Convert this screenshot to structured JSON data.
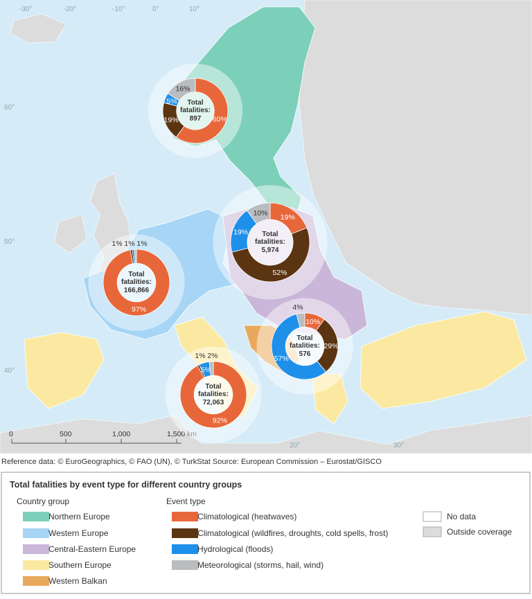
{
  "map": {
    "graticule_lon": [
      "-30°",
      "-20°",
      "-10°",
      "0°",
      "10°",
      "20°",
      "30°"
    ],
    "graticule_lat": [
      "60°",
      "50°",
      "40°"
    ],
    "scale_bar": [
      "0",
      "500",
      "1,000",
      "1,500",
      "km"
    ]
  },
  "reference": "Reference data: © EuroGeographics, © FAO (UN), © TurkStat Source: European Commission – Eurostat/GISCO",
  "donut_caption": "Total fatalities:",
  "donuts": [
    {
      "total": 897,
      "values": [
        60,
        19,
        5,
        16
      ],
      "value_labels": [
        "60%",
        "19%",
        "5%",
        "16%"
      ]
    },
    {
      "total": 166866,
      "total_label": "166,866",
      "values": [
        97,
        1,
        1,
        1
      ],
      "value_labels": [
        "97%",
        "1%",
        "1%",
        "1%"
      ]
    },
    {
      "total": 5974,
      "total_label": "5,974",
      "values": [
        19,
        52,
        19,
        10
      ],
      "value_labels": [
        "19%",
        "52%",
        "19%",
        "10%"
      ]
    },
    {
      "total": 576,
      "values": [
        10,
        29,
        57,
        4
      ],
      "value_labels": [
        "10%",
        "29%",
        "57%",
        "4%"
      ]
    },
    {
      "total": 72063,
      "total_label": "72,063",
      "values": [
        92,
        1,
        5,
        2
      ],
      "value_labels": [
        "92%",
        "1%",
        "5%",
        "2%"
      ]
    }
  ],
  "legend": {
    "title": "Total fatalities by event type for different country groups",
    "group_header": "Country group",
    "groups": [
      {
        "name": "Northern Europe",
        "color": "#7ccfb8"
      },
      {
        "name": "Western Europe",
        "color": "#a6d5f5"
      },
      {
        "name": "Central-Eastern Europe",
        "color": "#c9b6d8"
      },
      {
        "name": "Southern Europe",
        "color": "#fbe9a2"
      },
      {
        "name": "Western Balkan",
        "color": "#e9a95c"
      }
    ],
    "event_header": "Event type",
    "events": [
      {
        "name": "Climatological (heatwaves)",
        "color": "#e8673a"
      },
      {
        "name": "Climatological (wildfires, droughts, cold spells, frost)",
        "color": "#5b3411"
      },
      {
        "name": "Hydrological (floods)",
        "color": "#1e90ea"
      },
      {
        "name": "Meteorological (storms, hail, wind)",
        "color": "#b9bdc0"
      }
    ],
    "extra": [
      {
        "name": "No data",
        "color": "#ffffff"
      },
      {
        "name": "Outside coverage",
        "color": "#dcdcdc"
      }
    ]
  }
}
